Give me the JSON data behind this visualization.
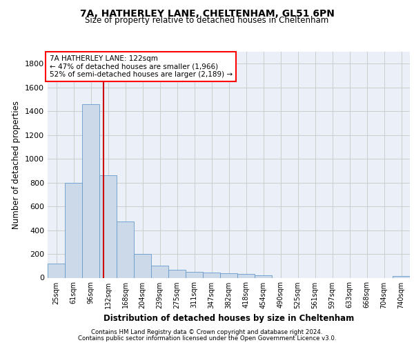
{
  "title1": "7A, HATHERLEY LANE, CHELTENHAM, GL51 6PN",
  "title2": "Size of property relative to detached houses in Cheltenham",
  "xlabel": "Distribution of detached houses by size in Cheltenham",
  "ylabel": "Number of detached properties",
  "footer1": "Contains HM Land Registry data © Crown copyright and database right 2024.",
  "footer2": "Contains public sector information licensed under the Open Government Licence v3.0.",
  "annotation_line1": "7A HATHERLEY LANE: 122sqm",
  "annotation_line2": "← 47% of detached houses are smaller (1,966)",
  "annotation_line3": "52% of semi-detached houses are larger (2,189) →",
  "bar_color": "#ccd9e8",
  "bar_edge_color": "#6699cc",
  "vline_color": "#cc0000",
  "categories": [
    "25sqm",
    "61sqm",
    "96sqm",
    "132sqm",
    "168sqm",
    "204sqm",
    "239sqm",
    "275sqm",
    "311sqm",
    "347sqm",
    "382sqm",
    "418sqm",
    "454sqm",
    "490sqm",
    "525sqm",
    "561sqm",
    "597sqm",
    "633sqm",
    "668sqm",
    "704sqm",
    "740sqm"
  ],
  "values": [
    120,
    795,
    1460,
    860,
    470,
    200,
    100,
    65,
    50,
    45,
    35,
    30,
    20,
    0,
    0,
    0,
    0,
    0,
    0,
    0,
    15
  ],
  "ylim": [
    0,
    1900
  ],
  "yticks": [
    0,
    200,
    400,
    600,
    800,
    1000,
    1200,
    1400,
    1600,
    1800
  ],
  "grid_color": "#cccccc",
  "bg_color": "#eaeff8"
}
